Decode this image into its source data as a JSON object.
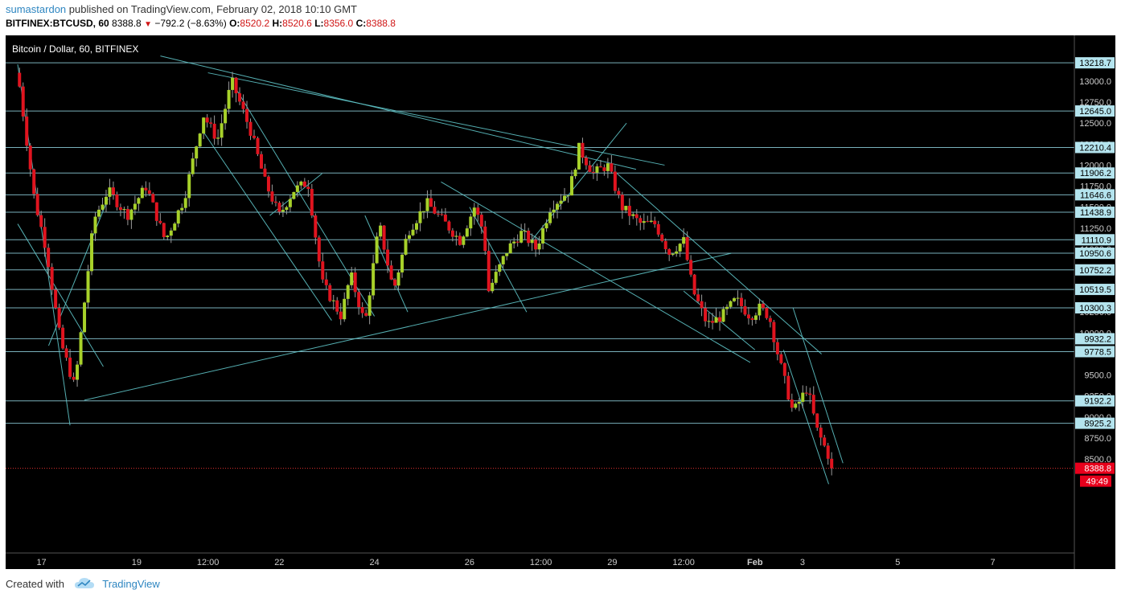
{
  "header": {
    "author": "sumastardon",
    "published_text": "published on TradingView.com, February 02, 2018 10:10 GMT",
    "symbol": "BITFINEX:BTCUSD, 60",
    "last": "8388.8",
    "change": "−792.2 (−8.63%)",
    "open_label": "O:",
    "open": "8520.2",
    "high_label": "H:",
    "high": "8520.6",
    "low_label": "L:",
    "low": "8356.0",
    "close_label": "C:",
    "close": "8388.8"
  },
  "footer": {
    "created_with": "Created with",
    "brand": "TradingView"
  },
  "chart_data": {
    "type": "candlestick",
    "title": "Bitcoin / Dollar, 60, BITFINEX",
    "xlabel": "",
    "ylabel": "",
    "ylim": [
      8250,
      13300
    ],
    "y_ticks": [
      "8500.0",
      "8750.0",
      "9000.0",
      "9250.0",
      "9500.0",
      "9750.0",
      "10000.0",
      "10250.0",
      "10500.0",
      "10750.0",
      "11000.0",
      "11250.0",
      "11500.0",
      "11750.0",
      "12000.0",
      "12250.0",
      "12500.0",
      "12750.0",
      "13000.0"
    ],
    "x_ticks": [
      {
        "label": "17",
        "t": 0.5
      },
      {
        "label": "19",
        "t": 2.5
      },
      {
        "label": "12:00",
        "t": 4.0
      },
      {
        "label": "22",
        "t": 5.5
      },
      {
        "label": "24",
        "t": 7.5
      },
      {
        "label": "26",
        "t": 9.5
      },
      {
        "label": "12:00",
        "t": 11.0
      },
      {
        "label": "29",
        "t": 12.5
      },
      {
        "label": "12:00",
        "t": 14.0
      },
      {
        "label": "Feb",
        "t": 15.5
      },
      {
        "label": "3",
        "t": 16.5
      },
      {
        "label": "5",
        "t": 18.5
      },
      {
        "label": "7",
        "t": 20.5
      }
    ],
    "price_levels": [
      "13218.7",
      "12645.0",
      "12210.4",
      "11906.2",
      "11646.6",
      "11438.9",
      "11110.9",
      "10950.6",
      "10752.2",
      "10519.5",
      "10300.3",
      "9932.2",
      "9778.5",
      "9192.2",
      "8925.2"
    ],
    "last_price": "8388.8",
    "countdown": "49:49",
    "path": [
      [
        0.0,
        13100
      ],
      [
        0.35,
        11600
      ],
      [
        0.6,
        11000
      ],
      [
        0.9,
        9900
      ],
      [
        1.2,
        9350
      ],
      [
        1.6,
        11350
      ],
      [
        1.9,
        11700
      ],
      [
        2.3,
        11400
      ],
      [
        2.7,
        11750
      ],
      [
        3.1,
        11100
      ],
      [
        3.5,
        11600
      ],
      [
        3.9,
        12600
      ],
      [
        4.2,
        12300
      ],
      [
        4.5,
        13000
      ],
      [
        4.9,
        12400
      ],
      [
        5.2,
        11800
      ],
      [
        5.5,
        11400
      ],
      [
        5.8,
        11700
      ],
      [
        6.1,
        11800
      ],
      [
        6.4,
        10600
      ],
      [
        6.8,
        10200
      ],
      [
        7.0,
        10700
      ],
      [
        7.3,
        10100
      ],
      [
        7.6,
        11300
      ],
      [
        7.9,
        10500
      ],
      [
        8.2,
        11200
      ],
      [
        8.6,
        11550
      ],
      [
        9.0,
        11300
      ],
      [
        9.3,
        11100
      ],
      [
        9.6,
        11500
      ],
      [
        9.8,
        11200
      ],
      [
        9.9,
        10500
      ],
      [
        10.3,
        11000
      ],
      [
        10.6,
        11200
      ],
      [
        10.9,
        11000
      ],
      [
        11.2,
        11500
      ],
      [
        11.6,
        11700
      ],
      [
        11.8,
        12200
      ],
      [
        12.1,
        11900
      ],
      [
        12.4,
        12000
      ],
      [
        12.7,
        11500
      ],
      [
        13.1,
        11300
      ],
      [
        13.4,
        11300
      ],
      [
        13.7,
        10950
      ],
      [
        14.0,
        11100
      ],
      [
        14.2,
        10500
      ],
      [
        14.5,
        10100
      ],
      [
        14.8,
        10200
      ],
      [
        15.1,
        10400
      ],
      [
        15.4,
        10200
      ],
      [
        15.6,
        10300
      ],
      [
        15.8,
        10200
      ],
      [
        16.0,
        9700
      ],
      [
        16.3,
        9050
      ],
      [
        16.6,
        9350
      ],
      [
        16.8,
        8850
      ],
      [
        17.0,
        8600
      ],
      [
        17.15,
        8389
      ]
    ]
  }
}
